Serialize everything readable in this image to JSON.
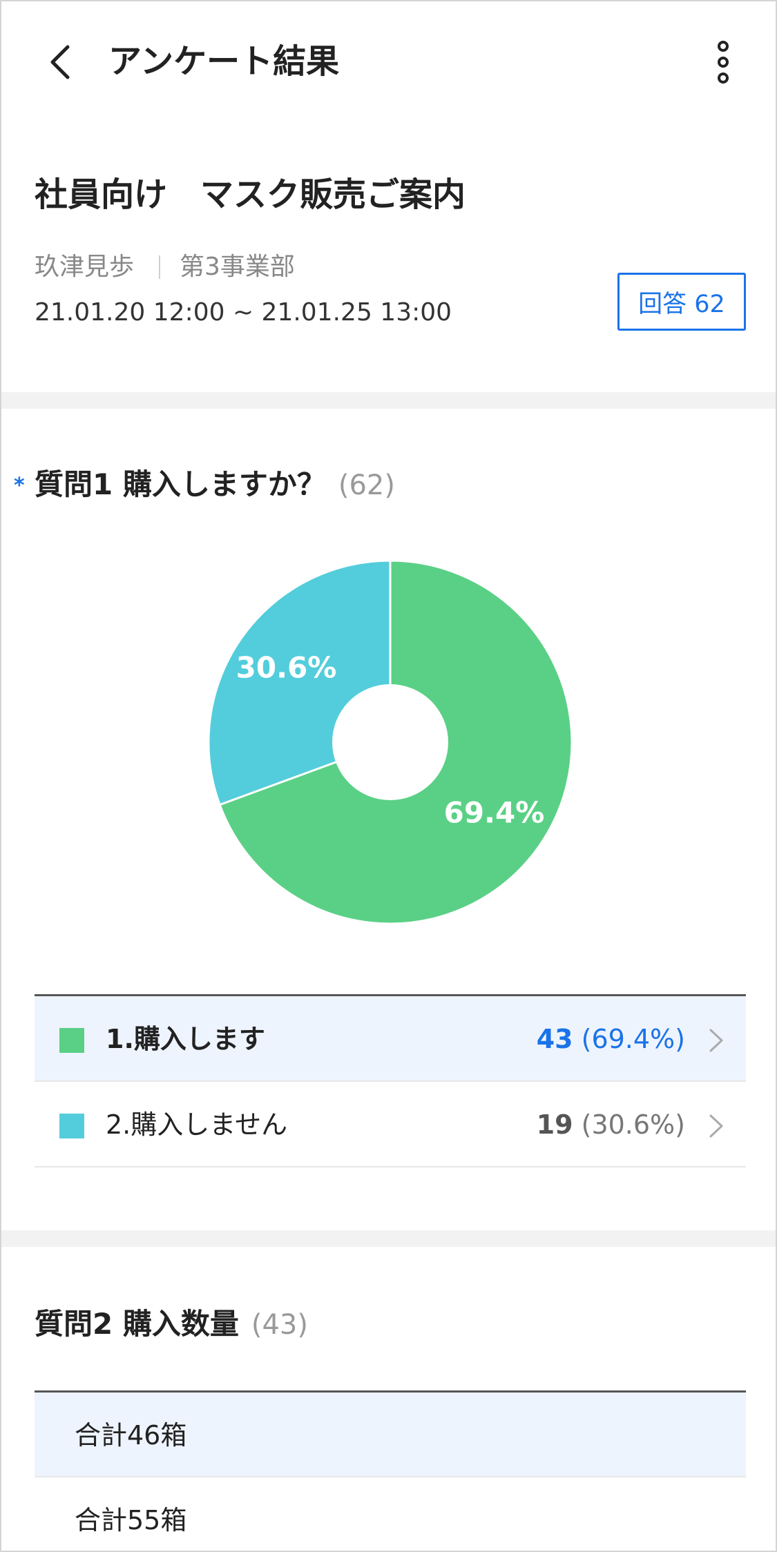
{
  "header": {
    "title": "アンケート結果"
  },
  "survey": {
    "title": "社員向け　マスク販売ご案内",
    "author": "玖津見歩",
    "department": "第3事業部",
    "period": "21.01.20 12:00 ~ 21.01.25 13:00",
    "answer_button": "回答 62"
  },
  "question1": {
    "required_mark": "*",
    "title": "質問1 購入しますか？",
    "count": "(62)",
    "options": [
      {
        "label": "1.購入します",
        "count": "43",
        "percent": "(69.4%)",
        "color": "#5ad086",
        "selected": true
      },
      {
        "label": "2.購入しません",
        "count": "19",
        "percent": "(30.6%)",
        "color": "#53cddb",
        "selected": false
      }
    ]
  },
  "chart_data": {
    "type": "pie",
    "categories": [
      "1.購入します",
      "2.購入しません"
    ],
    "values": [
      69.4,
      30.6
    ],
    "data_labels": [
      "69.4%",
      "30.6%"
    ],
    "colors": [
      "#5ad086",
      "#53cddb"
    ],
    "donut": true
  },
  "question2": {
    "title": "質問2 購入数量",
    "count": "(43)",
    "rows": [
      {
        "label": "合計46箱",
        "selected": true
      },
      {
        "label": "合計55箱",
        "selected": false
      }
    ]
  },
  "icons": {
    "back": "chevron-left-icon",
    "more": "more-vertical-icon",
    "row_chevron": "chevron-right-icon"
  },
  "colors": {
    "accent": "#1a73e8",
    "option1": "#5ad086",
    "option2": "#53cddb",
    "selected_row_bg": "#eef4fd"
  }
}
